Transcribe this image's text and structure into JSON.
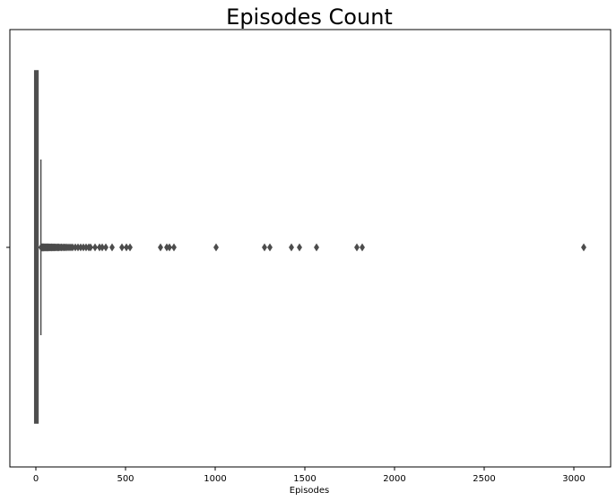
{
  "chart_data": {
    "type": "box",
    "orientation": "horizontal",
    "title": "Episodes Count",
    "xlabel": "Episodes",
    "ylabel": "",
    "xlim": [
      -145,
      3205
    ],
    "xticks": [
      0,
      500,
      1000,
      1500,
      2000,
      2500,
      3000
    ],
    "grid": false,
    "legend": "none",
    "box": {
      "q1": 1,
      "median": 1,
      "q3": 12,
      "whisker_low": 1,
      "whisker_high": 28
    },
    "outliers": [
      29,
      31,
      33,
      35,
      37,
      39,
      41,
      43,
      45,
      47,
      50,
      52,
      55,
      58,
      61,
      64,
      67,
      70,
      74,
      78,
      82,
      86,
      90,
      95,
      100,
      105,
      110,
      116,
      122,
      128,
      135,
      142,
      150,
      158,
      166,
      175,
      185,
      195,
      205,
      220,
      235,
      250,
      265,
      280,
      295,
      305,
      330,
      355,
      370,
      390,
      425,
      480,
      505,
      525,
      695,
      730,
      745,
      770,
      1005,
      1275,
      1305,
      1425,
      1470,
      1565,
      1790,
      1820,
      3055
    ],
    "colors": {
      "box": "#4c4c4c",
      "frame": "#000000"
    }
  }
}
